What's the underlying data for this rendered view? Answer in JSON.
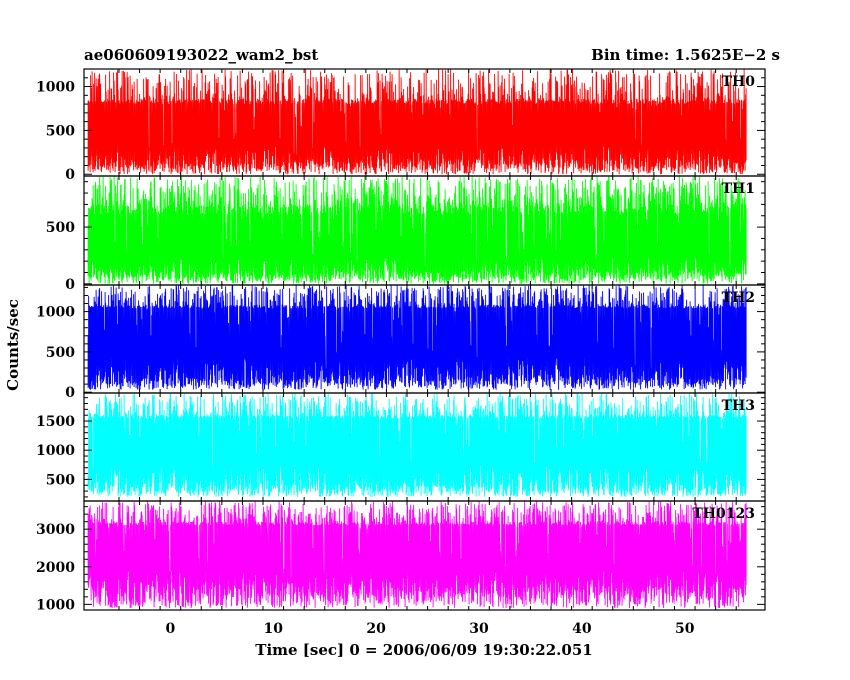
{
  "header": {
    "left_title": "ae060609193022_wam2_bst",
    "right_title": "Bin time: 1.5625E−2 s"
  },
  "chart_data": {
    "type": "line",
    "title": "ae060609193022_wam2_bst",
    "subtitle": "Bin time: 1.5625E−2 s",
    "xlabel": "Time [sec] 0 = 2006/06/09 19:30:22.051",
    "ylabel": "Counts/sec",
    "xlim": [
      -8.4,
      57.8
    ],
    "x_ticks": [
      0,
      10,
      20,
      30,
      40,
      50
    ],
    "x_tick_labels": [
      "0",
      "10",
      "20",
      "30",
      "40",
      "50"
    ],
    "data_x_range": [
      -8.0,
      56.0
    ],
    "grid": false,
    "legend": "none",
    "panels": [
      {
        "name": "TH0",
        "color": "#ff0000",
        "ylim": [
          -20,
          1200
        ],
        "yticks": [
          0,
          500,
          1000
        ],
        "ytick_labels": [
          "0",
          "500",
          "1000"
        ],
        "envelope": {
          "floor_min": 0,
          "floor_max": 180,
          "core_low": 130,
          "core_high": 800,
          "peak_min": 860,
          "peak_max": 1200
        }
      },
      {
        "name": "TH1",
        "color": "#00ff00",
        "ylim": [
          -10,
          950
        ],
        "yticks": [
          0,
          500
        ],
        "ytick_labels": [
          "0",
          "500"
        ],
        "envelope": {
          "floor_min": 0,
          "floor_max": 120,
          "core_low": 90,
          "core_high": 610,
          "peak_min": 700,
          "peak_max": 950
        }
      },
      {
        "name": "TH2",
        "color": "#0000ff",
        "ylim": [
          -10,
          1330
        ],
        "yticks": [
          0,
          500,
          1000
        ],
        "ytick_labels": [
          "0",
          "500",
          "1000"
        ],
        "envelope": {
          "floor_min": 30,
          "floor_max": 220,
          "core_low": 170,
          "core_high": 1040,
          "peak_min": 1080,
          "peak_max": 1330
        }
      },
      {
        "name": "TH3",
        "color": "#00ffff",
        "ylim": [
          130,
          1980
        ],
        "yticks": [
          500,
          1000,
          1500
        ],
        "ytick_labels": [
          "500",
          "1000",
          "1500"
        ],
        "envelope": {
          "floor_min": 200,
          "floor_max": 430,
          "core_low": 400,
          "core_high": 1550,
          "peak_min": 1600,
          "peak_max": 1980
        }
      },
      {
        "name": "TH0123",
        "color": "#ff00ff",
        "ylim": [
          850,
          3750
        ],
        "yticks": [
          1000,
          2000,
          3000
        ],
        "ytick_labels": [
          "1000",
          "2000",
          "3000"
        ],
        "envelope": {
          "floor_min": 900,
          "floor_max": 1500,
          "core_low": 1400,
          "core_high": 3100,
          "peak_min": 3200,
          "peak_max": 3750
        }
      }
    ]
  }
}
